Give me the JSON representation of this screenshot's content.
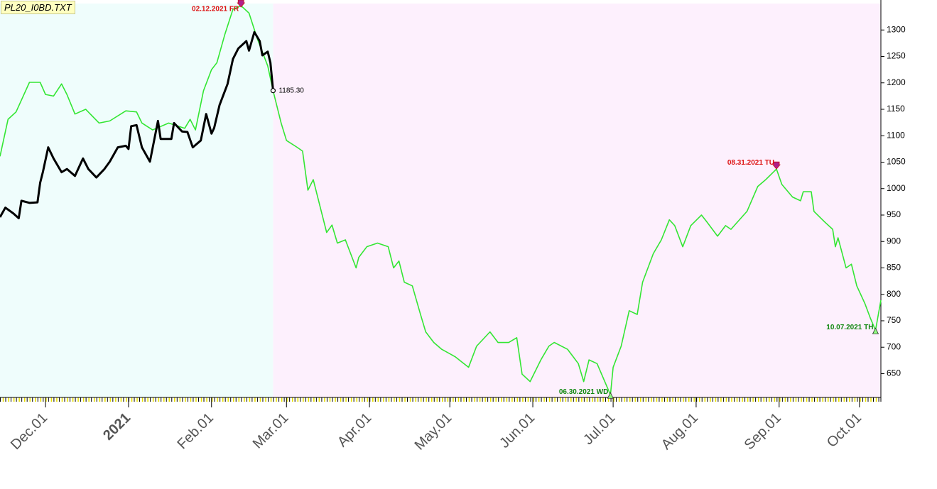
{
  "chart_data": {
    "type": "line",
    "title": "PL20_I0BD.TXT",
    "xlim": [
      "2020-11-14",
      "2021-10-09"
    ],
    "xticks": [
      {
        "value": "2020-12-01",
        "label": "Dec.01"
      },
      {
        "value": "2021-01-01",
        "label": "2021"
      },
      {
        "value": "2021-02-01",
        "label": "Feb.01"
      },
      {
        "value": "2021-03-01",
        "label": "Mar.01"
      },
      {
        "value": "2021-04-01",
        "label": "Apr.01"
      },
      {
        "value": "2021-05-01",
        "label": "May.01"
      },
      {
        "value": "2021-06-01",
        "label": "Jun.01"
      },
      {
        "value": "2021-07-01",
        "label": "Jul.01"
      },
      {
        "value": "2021-08-01",
        "label": "Aug.01"
      },
      {
        "value": "2021-09-01",
        "label": "Sep.01"
      },
      {
        "value": "2021-10-01",
        "label": "Oct.01"
      }
    ],
    "ylim": [
      605,
      1350
    ],
    "yticks": [
      650,
      700,
      750,
      800,
      850,
      900,
      950,
      1000,
      1050,
      1100,
      1150,
      1200,
      1250,
      1300
    ],
    "series": [
      {
        "color": "#33e633",
        "x": [
          "2020-11-14",
          "2020-11-17",
          "2020-11-20",
          "2020-11-25",
          "2020-11-29",
          "2020-12-01",
          "2020-12-04",
          "2020-12-07",
          "2020-12-09",
          "2020-12-12",
          "2020-12-16",
          "2020-12-21",
          "2020-12-25",
          "2020-12-31",
          "2021-01-04",
          "2021-01-06",
          "2021-01-10",
          "2021-01-16",
          "2021-01-22",
          "2021-01-24",
          "2021-01-26",
          "2021-01-29",
          "2021-02-01",
          "2021-02-03",
          "2021-02-06",
          "2021-02-09",
          "2021-02-12",
          "2021-02-15",
          "2021-02-18",
          "2021-02-22",
          "2021-02-24",
          "2021-02-27",
          "2021-03-01",
          "2021-03-05",
          "2021-03-07",
          "2021-03-09",
          "2021-03-11",
          "2021-03-14",
          "2021-03-16",
          "2021-03-18",
          "2021-03-20",
          "2021-03-23",
          "2021-03-27",
          "2021-03-28",
          "2021-03-31",
          "2021-04-04",
          "2021-04-08",
          "2021-04-10",
          "2021-04-12",
          "2021-04-14",
          "2021-04-17",
          "2021-04-20",
          "2021-04-22",
          "2021-04-25",
          "2021-04-28",
          "2021-05-03",
          "2021-05-08",
          "2021-05-11",
          "2021-05-16",
          "2021-05-19",
          "2021-05-23",
          "2021-05-26",
          "2021-05-28",
          "2021-05-31",
          "2021-06-04",
          "2021-06-07",
          "2021-06-09",
          "2021-06-14",
          "2021-06-18",
          "2021-06-20",
          "2021-06-22",
          "2021-06-25",
          "2021-06-30",
          "2021-07-01",
          "2021-07-04",
          "2021-07-07",
          "2021-07-10",
          "2021-07-12",
          "2021-07-14",
          "2021-07-16",
          "2021-07-19",
          "2021-07-22",
          "2021-07-24",
          "2021-07-27",
          "2021-07-30",
          "2021-08-03",
          "2021-08-05",
          "2021-08-09",
          "2021-08-12",
          "2021-08-14",
          "2021-08-20",
          "2021-08-24",
          "2021-08-27",
          "2021-08-31",
          "2021-09-02",
          "2021-09-06",
          "2021-09-09",
          "2021-09-10",
          "2021-09-13",
          "2021-09-14",
          "2021-09-18",
          "2021-09-21",
          "2021-09-22",
          "2021-09-23",
          "2021-09-26",
          "2021-09-28",
          "2021-09-30",
          "2021-10-03",
          "2021-10-05",
          "2021-10-07",
          "2021-10-09"
        ],
        "values": [
          1061,
          1131,
          1145,
          1201,
          1201,
          1178,
          1175,
          1198,
          1178,
          1141,
          1150,
          1124,
          1128,
          1147,
          1145,
          1124,
          1111,
          1124,
          1114,
          1131,
          1111,
          1185,
          1225,
          1238,
          1292,
          1339,
          1346,
          1332,
          1285,
          1232,
          1185,
          1124,
          1091,
          1078,
          1071,
          997,
          1017,
          957,
          917,
          931,
          897,
          903,
          850,
          870,
          890,
          897,
          890,
          850,
          863,
          823,
          816,
          763,
          729,
          709,
          696,
          682,
          662,
          702,
          729,
          709,
          709,
          718,
          649,
          635,
          676,
          702,
          709,
          696,
          669,
          635,
          676,
          669,
          610,
          662,
          702,
          769,
          762,
          823,
          850,
          877,
          903,
          941,
          930,
          890,
          930,
          950,
          937,
          910,
          930,
          923,
          957,
          1004,
          1017,
          1037,
          1008,
          984,
          977,
          994,
          994,
          957,
          937,
          923,
          890,
          907,
          850,
          857,
          816,
          783,
          756,
          732,
          789
        ]
      },
      {
        "color": "#000000",
        "x": [
          "2020-11-14",
          "2020-11-16",
          "2020-11-19",
          "2020-11-21",
          "2020-11-22",
          "2020-11-25",
          "2020-11-28",
          "2020-11-29",
          "2020-11-30",
          "2020-12-02",
          "2020-12-04",
          "2020-12-07",
          "2020-12-09",
          "2020-12-12",
          "2020-12-15",
          "2020-12-17",
          "2020-12-20",
          "2020-12-23",
          "2020-12-25",
          "2020-12-28",
          "2020-12-31",
          "2021-01-01",
          "2021-01-02",
          "2021-01-04",
          "2021-01-06",
          "2021-01-09",
          "2021-01-12",
          "2021-01-13",
          "2021-01-17",
          "2021-01-18",
          "2021-01-21",
          "2021-01-23",
          "2021-01-25",
          "2021-01-28",
          "2021-01-30",
          "2021-02-01",
          "2021-02-02",
          "2021-02-04",
          "2021-02-07",
          "2021-02-09",
          "2021-02-11",
          "2021-02-14",
          "2021-02-15",
          "2021-02-17",
          "2021-02-19",
          "2021-02-20",
          "2021-02-22",
          "2021-02-23",
          "2021-02-24"
        ],
        "values": [
          946,
          964,
          953,
          944,
          977,
          973,
          974,
          1011,
          1031,
          1078,
          1057,
          1031,
          1037,
          1024,
          1057,
          1037,
          1021,
          1037,
          1051,
          1078,
          1081,
          1075,
          1118,
          1120,
          1078,
          1051,
          1128,
          1094,
          1094,
          1124,
          1108,
          1107,
          1078,
          1091,
          1141,
          1104,
          1115,
          1158,
          1198,
          1245,
          1265,
          1279,
          1261,
          1296,
          1279,
          1252,
          1259,
          1238,
          1185.3
        ]
      }
    ],
    "annotations": [
      {
        "text": "02.12.2021 FR",
        "x": "2021-02-12",
        "y": 1346,
        "color": "#dd1111",
        "marker": "high"
      },
      {
        "text": "08.31.2021 TU",
        "x": "2021-08-31",
        "y": 1037,
        "color": "#dd1111",
        "marker": "high"
      },
      {
        "text": "06.30.2021 WD",
        "x": "2021-06-30",
        "y": 610,
        "color": "#118811",
        "marker": "low"
      },
      {
        "text": "10.07.2021 TH",
        "x": "2021-10-07",
        "y": 732,
        "color": "#118811",
        "marker": "low"
      },
      {
        "text": "1185.30",
        "x": "2021-02-24",
        "y": 1185.3,
        "color": "#000000",
        "marker": "circle"
      }
    ],
    "shading": [
      "#effdfc",
      "#fdf0fd"
    ]
  }
}
